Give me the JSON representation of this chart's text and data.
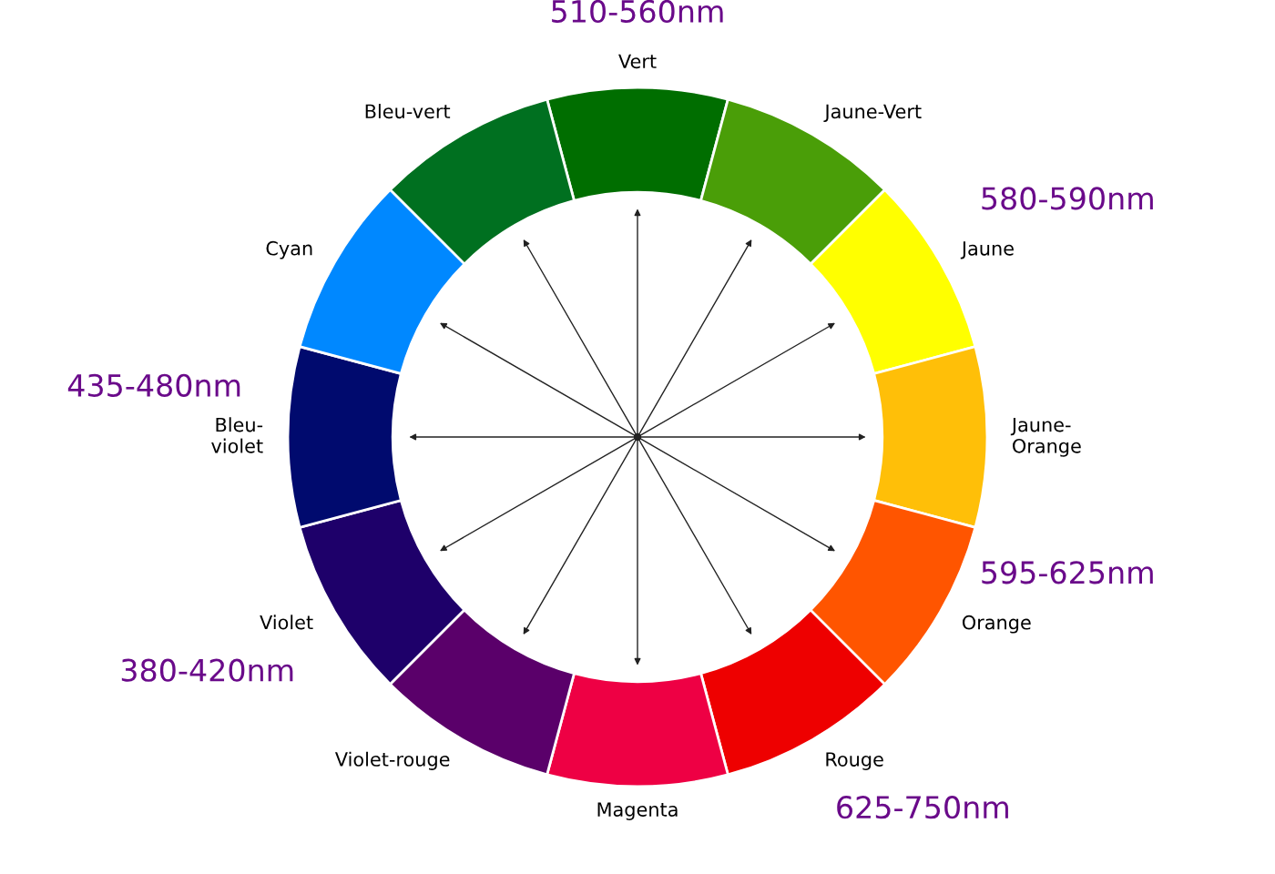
{
  "chart_data": {
    "type": "donut",
    "categories": [
      "Vert",
      "Jaune-Vert",
      "Jaune",
      "Jaune-\nOrange",
      "Orange",
      "Rouge",
      "Magenta",
      "Violet-rouge",
      "Violet",
      "Bleu-\nviolet",
      "Cyan",
      "Bleu-vert"
    ],
    "values": [
      8.33,
      8.34,
      8.33,
      8.33,
      8.34,
      8.33,
      8.33,
      8.34,
      8.33,
      8.33,
      8.34,
      8.33
    ],
    "colors": [
      "#006e00",
      "#4a9e08",
      "#ffff00",
      "#ffbf08",
      "#ff5500",
      "#ee0000",
      "#ee0044",
      "#5a006a",
      "#1e006a",
      "#000a6e",
      "#0088ff",
      "#007020"
    ],
    "annotations": [
      {
        "text": "510-560nm",
        "x": "Vert"
      },
      {
        "text": "580-590nm",
        "x": "Jaune"
      },
      {
        "text": "595-625nm",
        "x": "Orange"
      },
      {
        "text": "625-750nm",
        "x": "Rouge"
      },
      {
        "text": "380-420nm",
        "x": "Violet"
      },
      {
        "text": "435-480nm",
        "x": "Bleu-\nviolet"
      }
    ]
  }
}
